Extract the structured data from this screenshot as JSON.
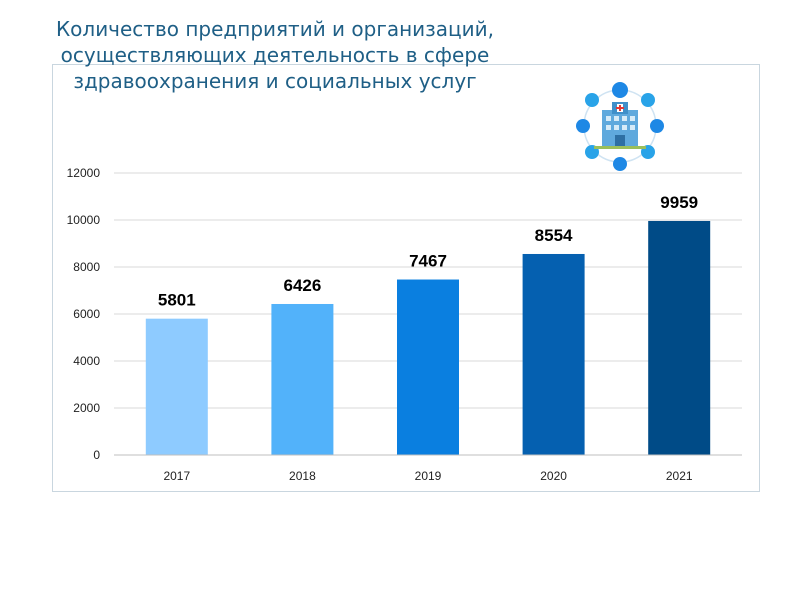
{
  "chart_data": {
    "type": "bar",
    "title_lines": [
      "Количество предприятий и организаций,",
      "осуществляющих деятельность в сфере",
      "здравоохранения и социальных услуг"
    ],
    "categories": [
      "2017",
      "2018",
      "2019",
      "2020",
      "2021"
    ],
    "values": [
      5801,
      6426,
      7467,
      8554,
      9959
    ],
    "data_labels": [
      "5801",
      "6426",
      "7467",
      "8554",
      "9959"
    ],
    "bar_colors": [
      "#8ecbff",
      "#52b2fa",
      "#0a7fe0",
      "#0560b0",
      "#004b87"
    ],
    "ylim": [
      0,
      12000
    ],
    "yticks": [
      "0",
      "2000",
      "4000",
      "6000",
      "8000",
      "10000",
      "12000"
    ],
    "grid": true,
    "legend": "none"
  },
  "icons": {
    "header_icon": "hospital-icon"
  }
}
